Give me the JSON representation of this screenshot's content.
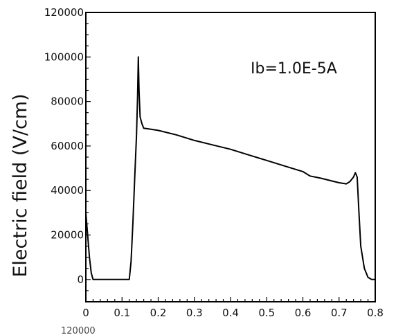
{
  "chart_data": {
    "type": "line",
    "title": "",
    "xlabel": "",
    "ylabel": "Electric field (V/cm)",
    "xlim": [
      0,
      0.8
    ],
    "ylim": [
      -10000,
      120000
    ],
    "x_ticks": [
      "0",
      "0.1",
      "0.2",
      "0.3",
      "0.4",
      "0.5",
      "0.6",
      "0.7",
      "0.8"
    ],
    "y_ticks": [
      "120000",
      "100000",
      "80000",
      "60000",
      "40000",
      "20000",
      "0"
    ],
    "grid": false,
    "annotation": "Ib=1.0E-5A",
    "cutoff_text": "120000",
    "series": [
      {
        "x": [
          0,
          0.005,
          0.01,
          0.015,
          0.02,
          0.05,
          0.1,
          0.12,
          0.125,
          0.13,
          0.135,
          0.14,
          0.143,
          0.145,
          0.147,
          0.15,
          0.155,
          0.16,
          0.18,
          0.2,
          0.25,
          0.3,
          0.35,
          0.4,
          0.45,
          0.5,
          0.55,
          0.6,
          0.62,
          0.65,
          0.7,
          0.72,
          0.73,
          0.74,
          0.745,
          0.75,
          0.752,
          0.755,
          0.76,
          0.77,
          0.78,
          0.79,
          0.8
        ],
        "values": [
          30000,
          20000,
          10000,
          3000,
          0,
          0,
          0,
          0,
          8000,
          25000,
          45000,
          65000,
          82000,
          100000,
          85000,
          73000,
          70000,
          68000,
          67500,
          67000,
          65000,
          62500,
          60500,
          58500,
          56000,
          53500,
          51000,
          48500,
          46500,
          45500,
          43500,
          43000,
          44000,
          46000,
          48000,
          46000,
          40000,
          30000,
          15000,
          5000,
          1000,
          0,
          0
        ]
      }
    ]
  }
}
